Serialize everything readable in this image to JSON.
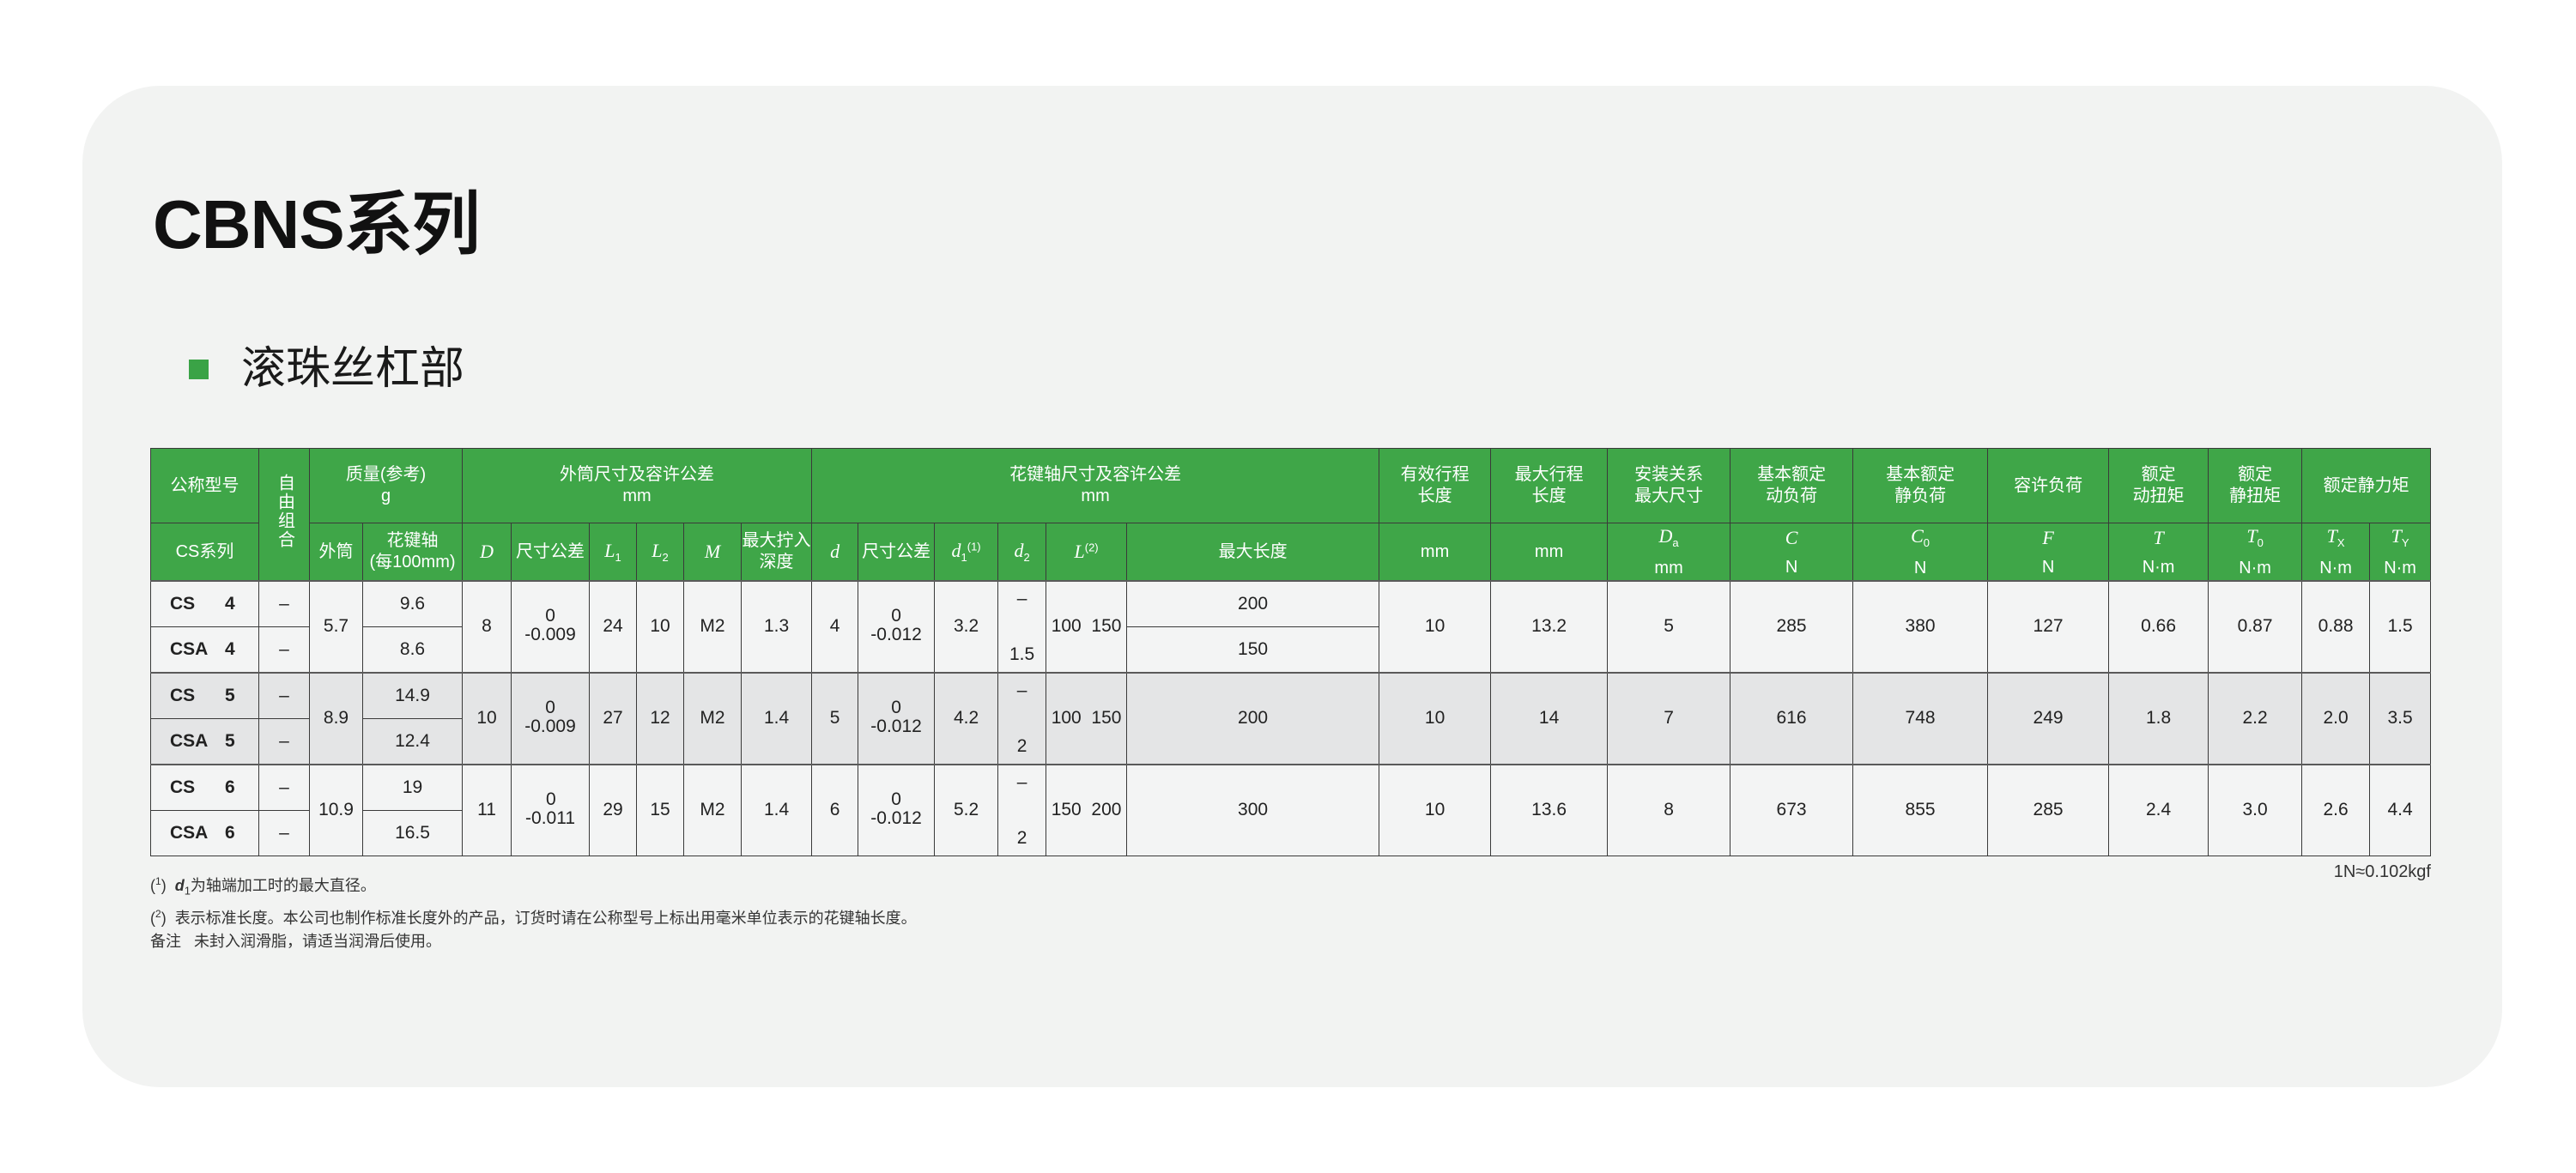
{
  "title": "CBNS系列",
  "section": {
    "title": "滚珠丝杠部",
    "marker_color": "#3aa346"
  },
  "colors": {
    "header_green": "#3fa648",
    "row_light": "#f3f4f4",
    "row_gray": "#e4e5e6"
  },
  "table": {
    "header_row1": [
      {
        "lines": [
          "公称型号"
        ]
      },
      {
        "lines": [
          "自由组合"
        ],
        "rowspan": 2,
        "vertical": true
      },
      {
        "lines": [
          "质量(参考)",
          "g"
        ],
        "colspan": 2
      },
      {
        "lines": [
          "外筒尺寸及容许公差",
          "mm"
        ],
        "colspan": 6
      },
      {
        "lines": [
          "花键轴尺寸及容许公差",
          "mm"
        ],
        "colspan": 6
      },
      {
        "lines": [
          "有效行程",
          "长度"
        ]
      },
      {
        "lines": [
          "最大行程",
          "长度"
        ]
      },
      {
        "lines": [
          "安装关系",
          "最大尺寸"
        ]
      },
      {
        "lines": [
          "基本额定",
          "动负荷"
        ]
      },
      {
        "lines": [
          "基本额定",
          "静负荷"
        ]
      },
      {
        "lines": [
          "容许负荷"
        ]
      },
      {
        "lines": [
          "额定",
          "动扭矩"
        ]
      },
      {
        "lines": [
          "额定",
          "静扭矩"
        ]
      },
      {
        "lines": [
          "额定静力矩"
        ],
        "colspan": 2
      }
    ],
    "header_row2": [
      {
        "lines": [
          "CS系列"
        ]
      },
      {
        "lines": [
          "外筒"
        ]
      },
      {
        "lines": [
          "花键轴",
          "(每100mm)"
        ]
      },
      {
        "sym": "D"
      },
      {
        "lines": [
          "尺寸公差"
        ]
      },
      {
        "sym": "L",
        "sub": "1"
      },
      {
        "sym": "L",
        "sub": "2"
      },
      {
        "sym": "M"
      },
      {
        "lines": [
          "最大拧入",
          "深度"
        ]
      },
      {
        "sym": "d"
      },
      {
        "lines": [
          "尺寸公差"
        ]
      },
      {
        "sym": "d",
        "sub": "1",
        "sup": "(1)"
      },
      {
        "sym": "d",
        "sub": "2"
      },
      {
        "sym": "L",
        "sup": "(2)"
      },
      {
        "lines": [
          "最大长度"
        ],
        "align": "left"
      },
      {
        "lines": [
          "mm"
        ]
      },
      {
        "lines": [
          "mm"
        ]
      },
      {
        "sym": "D",
        "sub": "a",
        "unit": "mm"
      },
      {
        "sym": "C",
        "unit": "N"
      },
      {
        "sym": "C",
        "sub": "0",
        "unit": "N"
      },
      {
        "sym": "F",
        "unit": "N"
      },
      {
        "sym": "T",
        "unit": "N·m"
      },
      {
        "sym": "T",
        "sub": "0",
        "unit": "N·m"
      },
      {
        "sym": "T",
        "sub": "X",
        "unit": "N·m"
      },
      {
        "sym": "T",
        "sub": "Y",
        "unit": "N·m"
      }
    ],
    "groups": [
      {
        "rows": [
          {
            "series": "CS",
            "size": "4",
            "free": "–",
            "spline_mass": "9.6",
            "max_length": "200"
          },
          {
            "series": "CSA",
            "size": "4",
            "free": "–",
            "spline_mass": "8.6",
            "max_length": "150"
          }
        ],
        "outer_mass": "5.7",
        "D": "8",
        "D_tol_upper": "0",
        "D_tol_lower": "-0.009",
        "L1": "24",
        "L2": "10",
        "M": "M2",
        "max_depth": "1.3",
        "d": "4",
        "d_tol_upper": "0",
        "d_tol_lower": "-0.012",
        "d1": "3.2",
        "d2_top": "–",
        "d2_bottom": "1.5",
        "L": "100  150",
        "stroke": "10",
        "max_stroke": "13.2",
        "Da": "5",
        "C": "285",
        "C0": "380",
        "F": "127",
        "T": "0.66",
        "T0": "0.87",
        "Tx": "0.88",
        "Ty": "1.5"
      },
      {
        "rows": [
          {
            "series": "CS",
            "size": "5",
            "free": "–",
            "spline_mass": "14.9"
          },
          {
            "series": "CSA",
            "size": "5",
            "free": "–",
            "spline_mass": "12.4"
          }
        ],
        "max_length": "200",
        "outer_mass": "8.9",
        "D": "10",
        "D_tol_upper": "0",
        "D_tol_lower": "-0.009",
        "L1": "27",
        "L2": "12",
        "M": "M2",
        "max_depth": "1.4",
        "d": "5",
        "d_tol_upper": "0",
        "d_tol_lower": "-0.012",
        "d1": "4.2",
        "d2_top": "–",
        "d2_bottom": "2",
        "L": "100  150",
        "stroke": "10",
        "max_stroke": "14",
        "Da": "7",
        "C": "616",
        "C0": "748",
        "F": "249",
        "T": "1.8",
        "T0": "2.2",
        "Tx": "2.0",
        "Ty": "3.5"
      },
      {
        "rows": [
          {
            "series": "CS",
            "size": "6",
            "free": "–",
            "spline_mass": "19"
          },
          {
            "series": "CSA",
            "size": "6",
            "free": "–",
            "spline_mass": "16.5"
          }
        ],
        "max_length": "300",
        "outer_mass": "10.9",
        "D": "11",
        "D_tol_upper": "0",
        "D_tol_lower": "-0.011",
        "L1": "29",
        "L2": "15",
        "M": "M2",
        "max_depth": "1.4",
        "d": "6",
        "d_tol_upper": "0",
        "d_tol_lower": "-0.012",
        "d1": "5.2",
        "d2_top": "–",
        "d2_bottom": "2",
        "L": "150  200",
        "stroke": "10",
        "max_stroke": "13.6",
        "Da": "8",
        "C": "673",
        "C0": "855",
        "F": "285",
        "T": "2.4",
        "T0": "3.0",
        "Tx": "2.6",
        "Ty": "4.4"
      }
    ]
  },
  "conversion": "1N≈0.102kgf",
  "notes": {
    "note1": {
      "marker": "1",
      "var": "d",
      "var_sub": "1",
      "text": "为轴端加工时的最大直径。"
    },
    "note2": {
      "marker": "2",
      "text": "表示标准长度。本公司也制作标准长度外的产品，订货时请在公称型号上标出用毫米单位表示的花键轴长度。"
    },
    "remark": {
      "label": "备注",
      "text": "未封入润滑脂，请适当润滑后使用。"
    }
  }
}
